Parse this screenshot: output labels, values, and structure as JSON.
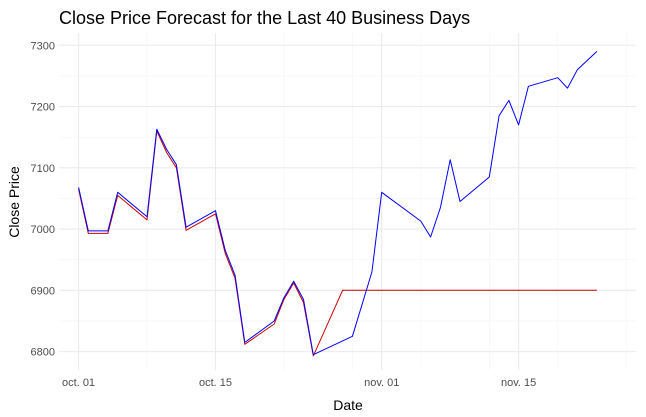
{
  "chart_data": {
    "type": "line",
    "title": "Close Price Forecast for the Last 40 Business Days",
    "xlabel": "Date",
    "ylabel": "Close Price",
    "x_ticks": [
      {
        "date": "2024-10-01",
        "label": "oct. 01"
      },
      {
        "date": "2024-10-15",
        "label": "oct. 15"
      },
      {
        "date": "2024-11-01",
        "label": "nov. 01"
      },
      {
        "date": "2024-11-15",
        "label": "nov. 15"
      }
    ],
    "y_ticks": [
      6800,
      6900,
      7000,
      7100,
      7200,
      7300
    ],
    "xlim": [
      "2024-09-29",
      "2024-11-27"
    ],
    "ylim": [
      6770,
      7320
    ],
    "grid": true,
    "series": [
      {
        "color": "#0000ff",
        "points": [
          [
            "2024-10-01",
            7068
          ],
          [
            "2024-10-02",
            6997
          ],
          [
            "2024-10-03",
            6997
          ],
          [
            "2024-10-04",
            6997
          ],
          [
            "2024-10-05",
            7060
          ],
          [
            "2024-10-08",
            7020
          ],
          [
            "2024-10-09",
            7163
          ],
          [
            "2024-10-10",
            7130
          ],
          [
            "2024-10-11",
            7105
          ],
          [
            "2024-10-12",
            7003
          ],
          [
            "2024-10-15",
            7030
          ],
          [
            "2024-10-16",
            6965
          ],
          [
            "2024-10-17",
            6925
          ],
          [
            "2024-10-18",
            6815
          ],
          [
            "2024-10-21",
            6850
          ],
          [
            "2024-10-22",
            6888
          ],
          [
            "2024-10-23",
            6915
          ],
          [
            "2024-10-24",
            6885
          ],
          [
            "2024-10-25",
            6795
          ],
          [
            "2024-10-29",
            6825
          ],
          [
            "2024-10-31",
            6930
          ],
          [
            "2024-11-01",
            7060
          ],
          [
            "2024-11-05",
            7013
          ],
          [
            "2024-11-06",
            6987
          ],
          [
            "2024-11-07",
            7035
          ],
          [
            "2024-11-08",
            7113
          ],
          [
            "2024-11-09",
            7045
          ],
          [
            "2024-11-12",
            7085
          ],
          [
            "2024-11-13",
            7185
          ],
          [
            "2024-11-14",
            7210
          ],
          [
            "2024-11-15",
            7170
          ],
          [
            "2024-11-16",
            7233
          ],
          [
            "2024-11-19",
            7247
          ],
          [
            "2024-11-20",
            7230
          ],
          [
            "2024-11-21",
            7260
          ],
          [
            "2024-11-23",
            7290
          ]
        ]
      },
      {
        "color": "#cc0000",
        "points": [
          [
            "2024-10-01",
            7065
          ],
          [
            "2024-10-02",
            6993
          ],
          [
            "2024-10-03",
            6993
          ],
          [
            "2024-10-04",
            6993
          ],
          [
            "2024-10-05",
            7055
          ],
          [
            "2024-10-08",
            7015
          ],
          [
            "2024-10-09",
            7160
          ],
          [
            "2024-10-10",
            7125
          ],
          [
            "2024-10-11",
            7100
          ],
          [
            "2024-10-12",
            6998
          ],
          [
            "2024-10-15",
            7025
          ],
          [
            "2024-10-16",
            6960
          ],
          [
            "2024-10-17",
            6920
          ],
          [
            "2024-10-18",
            6812
          ],
          [
            "2024-10-21",
            6845
          ],
          [
            "2024-10-22",
            6885
          ],
          [
            "2024-10-23",
            6912
          ],
          [
            "2024-10-24",
            6880
          ],
          [
            "2024-10-25",
            6793
          ],
          [
            "2024-10-28",
            6900
          ],
          [
            "2024-11-23",
            6900
          ]
        ]
      }
    ]
  }
}
